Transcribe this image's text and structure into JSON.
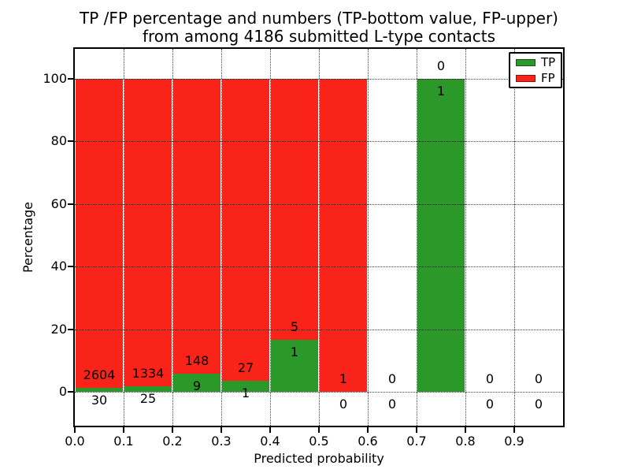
{
  "figure": {
    "title_line1": "TP /FP percentage and numbers (TP-bottom value, FP-upper)",
    "title_line2": "from among 4186 submitted L-type contacts",
    "xlabel": "Predicted probability",
    "ylabel": "Percentage"
  },
  "legend": {
    "items": [
      {
        "label": "TP",
        "color": "#2a992a"
      },
      {
        "label": "FP",
        "color": "#fa231a"
      }
    ]
  },
  "chart_data": {
    "type": "bar",
    "stacked": true,
    "normalized": "each non-empty bin stacks to 100%",
    "title": "TP /FP percentage and numbers (TP-bottom value, FP-upper) from among 4186 submitted L-type contacts",
    "xlabel": "Predicted probability",
    "ylabel": "Percentage",
    "xlim": [
      0.0,
      1.0
    ],
    "ylim": [
      -11,
      110
    ],
    "x_ticks": [
      "0.0",
      "0.1",
      "0.2",
      "0.3",
      "0.4",
      "0.5",
      "0.6",
      "0.7",
      "0.8",
      "0.9"
    ],
    "y_ticks": [
      0,
      20,
      40,
      60,
      80,
      100
    ],
    "grid": "dotted",
    "legend_position": "upper right",
    "annotation_rule": "FP count printed above TP/FP boundary, TP count printed below it",
    "total_contacts": 4186,
    "series_colors": {
      "TP": "#2a992a",
      "FP": "#fa231a"
    },
    "bins": [
      {
        "x_range": [
          0.0,
          0.1
        ],
        "tp": 30,
        "fp": 2604
      },
      {
        "x_range": [
          0.1,
          0.2
        ],
        "tp": 25,
        "fp": 1334
      },
      {
        "x_range": [
          0.2,
          0.3
        ],
        "tp": 9,
        "fp": 148
      },
      {
        "x_range": [
          0.3,
          0.4
        ],
        "tp": 1,
        "fp": 27
      },
      {
        "x_range": [
          0.4,
          0.5
        ],
        "tp": 1,
        "fp": 5
      },
      {
        "x_range": [
          0.5,
          0.6
        ],
        "tp": 0,
        "fp": 1
      },
      {
        "x_range": [
          0.6,
          0.7
        ],
        "tp": 0,
        "fp": 0
      },
      {
        "x_range": [
          0.7,
          0.8
        ],
        "tp": 1,
        "fp": 0
      },
      {
        "x_range": [
          0.8,
          0.9
        ],
        "tp": 0,
        "fp": 0
      },
      {
        "x_range": [
          0.9,
          1.0
        ],
        "tp": 0,
        "fp": 0
      }
    ]
  }
}
